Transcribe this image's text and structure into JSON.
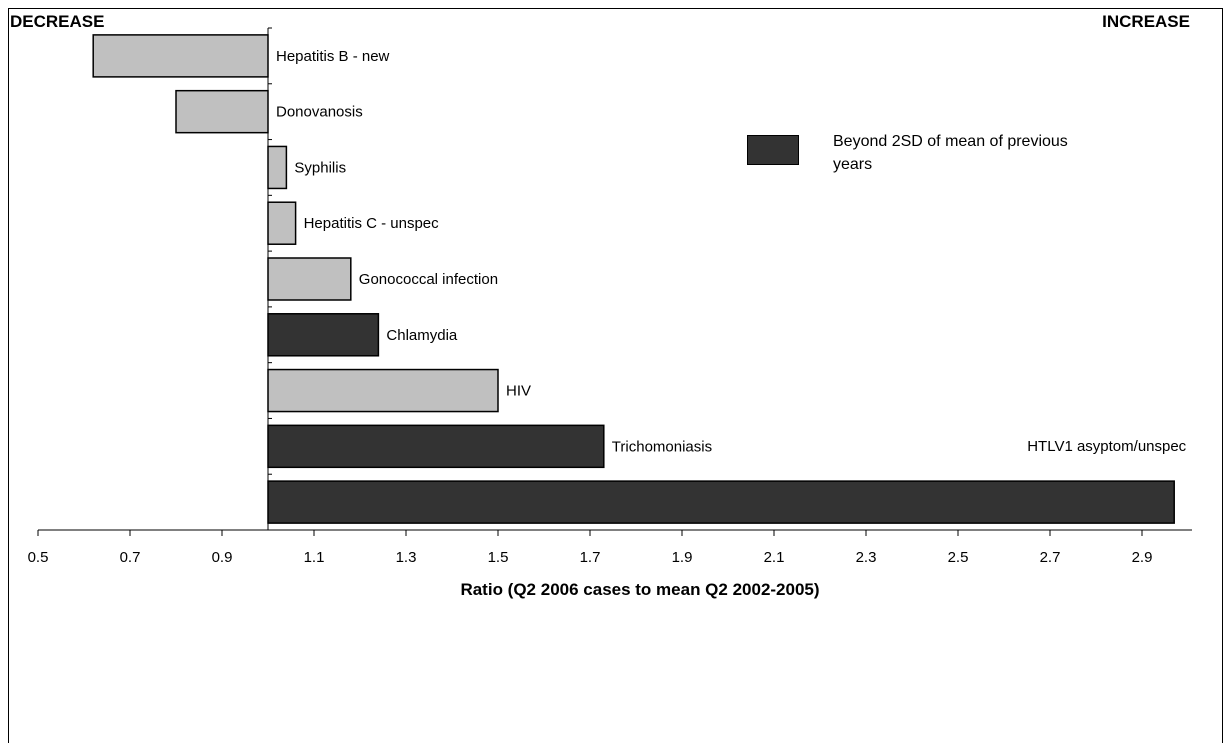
{
  "corner_labels": {
    "left": "DECREASE",
    "right": "INCREASE"
  },
  "legend": {
    "label": "Beyond 2SD of mean of previous years",
    "color": "#333333"
  },
  "chart_data": {
    "type": "bar",
    "orientation": "horizontal",
    "baseline": 1.0,
    "xlabel": "Ratio (Q2 2006 cases to mean Q2 2002-2005)",
    "xlim": [
      0.5,
      3.0
    ],
    "xticks": [
      "0.5",
      "0.7",
      "0.9",
      "1.1",
      "1.3",
      "1.5",
      "1.7",
      "1.9",
      "2.1",
      "2.3",
      "2.5",
      "2.7",
      "2.9"
    ],
    "colors": {
      "normal": "#c0c0c0",
      "beyond_2sd": "#333333"
    },
    "bars": [
      {
        "label": "Hepatitis B - new",
        "value": 0.62,
        "beyond_2sd": false
      },
      {
        "label": "Donovanosis",
        "value": 0.8,
        "beyond_2sd": false
      },
      {
        "label": "Syphilis",
        "value": 1.04,
        "beyond_2sd": false
      },
      {
        "label": "Hepatitis C - unspec",
        "value": 1.06,
        "beyond_2sd": false
      },
      {
        "label": "Gonococcal infection",
        "value": 1.18,
        "beyond_2sd": false
      },
      {
        "label": "Chlamydia",
        "value": 1.24,
        "beyond_2sd": true
      },
      {
        "label": "HIV",
        "value": 1.5,
        "beyond_2sd": false
      },
      {
        "label": "Trichomoniasis",
        "value": 1.73,
        "beyond_2sd": true
      },
      {
        "label": "HTLV1 asyptom/unspec",
        "value": 2.97,
        "beyond_2sd": true
      }
    ]
  }
}
